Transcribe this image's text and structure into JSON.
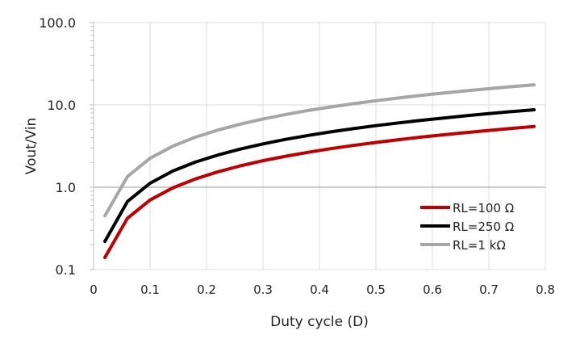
{
  "chart_data": {
    "type": "line",
    "title": "",
    "xlabel": "Duty cycle (D)",
    "ylabel": "Vout/Vin",
    "xlim": [
      0,
      0.8
    ],
    "ylim": [
      0.1,
      100
    ],
    "yscale": "log",
    "grid": true,
    "legend_position": "bottom-right",
    "x_ticks": [
      "0",
      "0.1",
      "0.2",
      "0.3",
      "0.4",
      "0.5",
      "0.6",
      "0.7",
      "0.8"
    ],
    "x_tick_values": [
      0,
      0.1,
      0.2,
      0.3,
      0.4,
      0.5,
      0.6,
      0.7,
      0.8
    ],
    "y_ticks": [
      "100.0",
      "10.0",
      "1.0",
      "0.1"
    ],
    "y_tick_values": [
      100,
      10,
      1,
      0.1
    ],
    "x": [
      0.02,
      0.06,
      0.1,
      0.14,
      0.18,
      0.22,
      0.26,
      0.3,
      0.34,
      0.38,
      0.42,
      0.46,
      0.5,
      0.54,
      0.58,
      0.62,
      0.66,
      0.7,
      0.74,
      0.78
    ],
    "series": [
      {
        "name": "RL=100 Ω",
        "color": "#c00000",
        "values": [
          0.14,
          0.42,
          0.7,
          0.98,
          1.26,
          1.54,
          1.82,
          2.1,
          2.38,
          2.66,
          2.94,
          3.22,
          3.5,
          3.78,
          4.06,
          4.34,
          4.62,
          4.9,
          5.18,
          5.46
        ]
      },
      {
        "name": "RL=250 Ω",
        "color": "#000000",
        "values": [
          0.22,
          0.67,
          1.12,
          1.57,
          2.02,
          2.46,
          2.91,
          3.36,
          3.81,
          4.26,
          4.7,
          5.15,
          5.6,
          6.05,
          6.5,
          6.94,
          7.39,
          7.84,
          8.29,
          8.74
        ]
      },
      {
        "name": "RL=1 kΩ",
        "color": "#a6a6a6",
        "values": [
          0.45,
          1.35,
          2.25,
          3.15,
          4.05,
          4.95,
          5.85,
          6.75,
          7.65,
          8.55,
          9.45,
          10.35,
          11.25,
          12.15,
          13.05,
          13.95,
          14.85,
          15.75,
          16.65,
          17.55
        ]
      }
    ]
  }
}
